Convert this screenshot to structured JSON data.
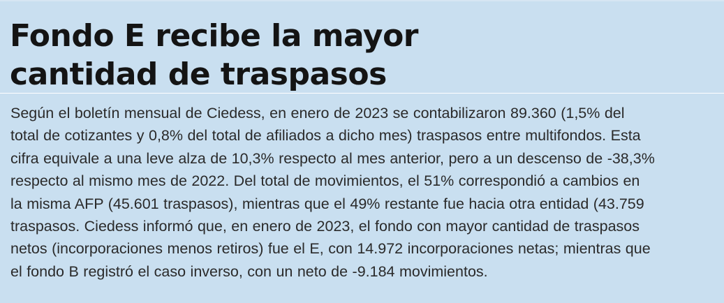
{
  "article": {
    "headline_lines": [
      "Fondo E recibe la mayor",
      "cantidad de traspasos"
    ],
    "body_lines": [
      "Según el boletín mensual de Ciedess, en enero de 2023 se contabilizaron 89.360 (1,5% del",
      "total de cotizantes y 0,8% del total de afiliados a dicho mes) traspasos entre multifondos. Esta",
      "cifra equivale a una leve alza de 10,3% respecto al mes anterior, pero a un descenso de -38,3%",
      "respecto al mismo mes de 2022. Del total de movimientos, el 51% correspondió a cambios en",
      "la misma AFP (45.601 traspasos), mientras que el 49% restante fue hacia otra entidad (43.759",
      "traspasos. Ciedess informó que, en enero de 2023, el fondo con mayor cantidad de traspasos",
      "netos (incorporaciones menos retiros) fue el E, con 14.972 incorporaciones netas; mientras que",
      "el fondo B registró el caso inverso, con un neto de -9.184 movimientos."
    ]
  },
  "colors": {
    "background": "#c9dff0",
    "headline": "#141414",
    "body": "#2a2a2a",
    "divider": "#ffffff"
  }
}
